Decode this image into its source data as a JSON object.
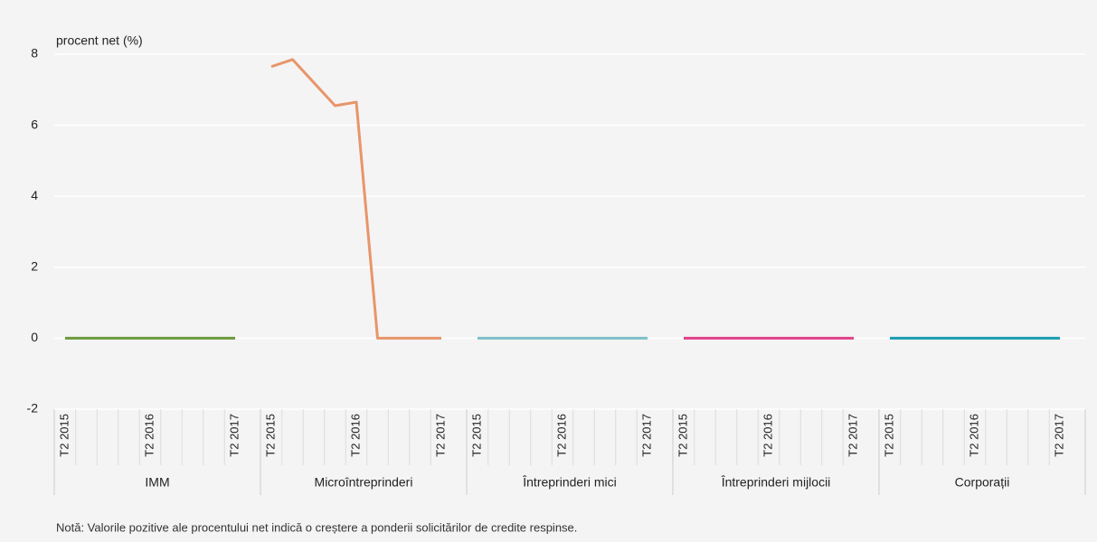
{
  "chart_data": {
    "type": "line",
    "y_label": "procent net (%)",
    "note": "Notă: Valorile pozitive ale procentului net indică o creștere a ponderii solicitărilor de credite respinse.",
    "categories": [
      "T2 2015",
      null,
      null,
      null,
      "T2 2016",
      null,
      null,
      null,
      "T2 2017"
    ],
    "series": [
      {
        "name": "IMM",
        "color": "#6a9a3a",
        "values": [
          0,
          0,
          0,
          0,
          0,
          0,
          0,
          0,
          0
        ]
      },
      {
        "name": "Microîntreprinderi",
        "color": "#e8956a",
        "values": [
          7.65,
          7.85,
          7.2,
          6.55,
          6.65,
          0,
          0,
          0,
          0
        ]
      },
      {
        "name": "Întreprinderi mici",
        "color": "#7dbfc7",
        "values": [
          0,
          0,
          0,
          0,
          0,
          0,
          0,
          0,
          0
        ]
      },
      {
        "name": "Întreprinderi mijlocii",
        "color": "#e0408a",
        "values": [
          0,
          0,
          0,
          0,
          0,
          0,
          0,
          0,
          0
        ]
      },
      {
        "name": "Corporații",
        "color": "#1a9bb0",
        "values": [
          0,
          0,
          0,
          0,
          0,
          0,
          0,
          0,
          0
        ]
      }
    ],
    "ylim": [
      -2,
      8
    ],
    "yticks": [
      -2,
      0,
      2,
      4,
      6,
      8
    ],
    "grid": true
  }
}
